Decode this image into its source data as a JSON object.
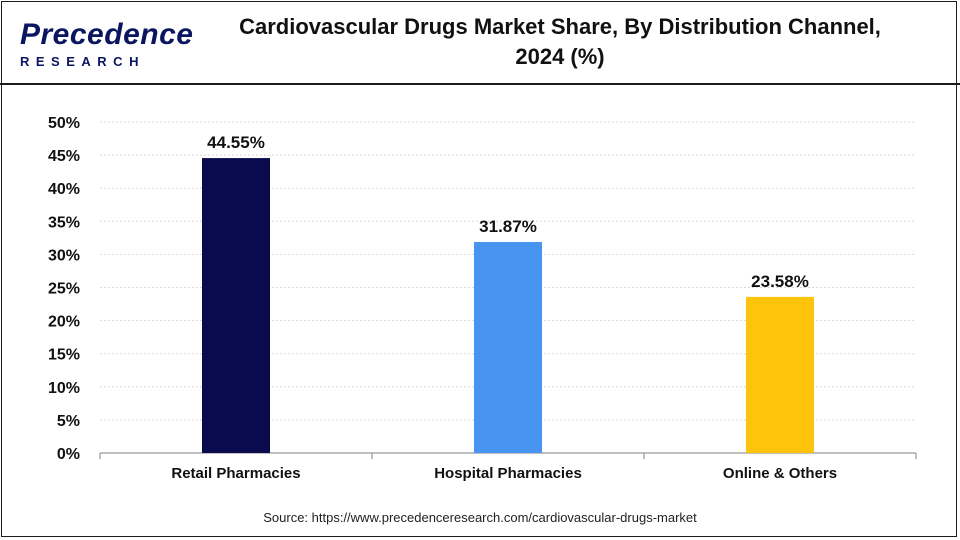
{
  "header": {
    "logo_name": "Precedence",
    "logo_sub": "RESEARCH",
    "title_line1": "Cardiovascular Drugs Market Share, By Distribution Channel,",
    "title_line2": "2024 (%)"
  },
  "footer": {
    "source": "Source: https://www.precedenceresearch.com/cardiovascular-drugs-market"
  },
  "chart_data": {
    "type": "bar",
    "title": "Cardiovascular Drugs Market Share, By Distribution Channel, 2024 (%)",
    "xlabel": "",
    "ylabel": "",
    "categories": [
      "Retail Pharmacies",
      "Hospital Pharmacies",
      "Online & Others"
    ],
    "values": [
      44.55,
      31.87,
      23.58
    ],
    "value_labels": [
      "44.55%",
      "31.87%",
      "23.58%"
    ],
    "colors": [
      "#0a0a4f",
      "#4794f1",
      "#fec30b"
    ],
    "ylim": [
      0,
      50
    ],
    "yticks": [
      0,
      5,
      10,
      15,
      20,
      25,
      30,
      35,
      40,
      45,
      50
    ],
    "ytick_labels": [
      "0%",
      "5%",
      "10%",
      "15%",
      "20%",
      "25%",
      "30%",
      "35%",
      "40%",
      "45%",
      "50%"
    ],
    "grid": true
  }
}
